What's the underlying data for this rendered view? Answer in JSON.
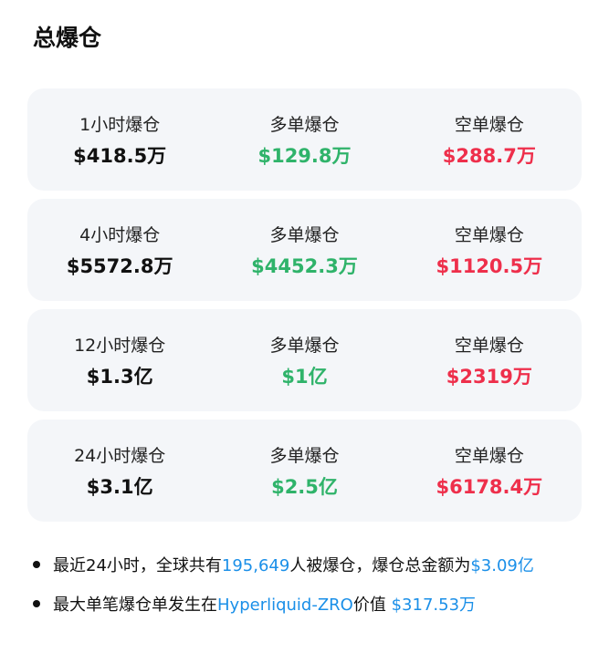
{
  "title": "总爆仓",
  "colors": {
    "long": "#2fb36a",
    "short": "#ee2f4b",
    "link": "#1a8fe8"
  },
  "rows": [
    {
      "period": "1小时爆仓",
      "total": "$418.5万",
      "long_label": "多单爆仓",
      "long": "$129.8万",
      "short_label": "空单爆仓",
      "short": "$288.7万"
    },
    {
      "period": "4小时爆仓",
      "total": "$5572.8万",
      "long_label": "多单爆仓",
      "long": "$4452.3万",
      "short_label": "空单爆仓",
      "short": "$1120.5万"
    },
    {
      "period": "12小时爆仓",
      "total": "$1.3亿",
      "long_label": "多单爆仓",
      "long": "$1亿",
      "short_label": "空单爆仓",
      "short": "$2319万"
    },
    {
      "period": "24小时爆仓",
      "total": "$3.1亿",
      "long_label": "多单爆仓",
      "long": "$2.5亿",
      "short_label": "空单爆仓",
      "short": "$6178.4万"
    }
  ],
  "summary": {
    "line1": {
      "a": "最近24小时，全球共有",
      "count": "195,649",
      "b": "人被爆仓，爆仓总金额为",
      "amount": "$3.09亿"
    },
    "line2": {
      "a": "最大单笔爆仓单发生在",
      "pair": "Hyperliquid-ZRO",
      "b": "价值 ",
      "amount": "$317.53万"
    }
  }
}
